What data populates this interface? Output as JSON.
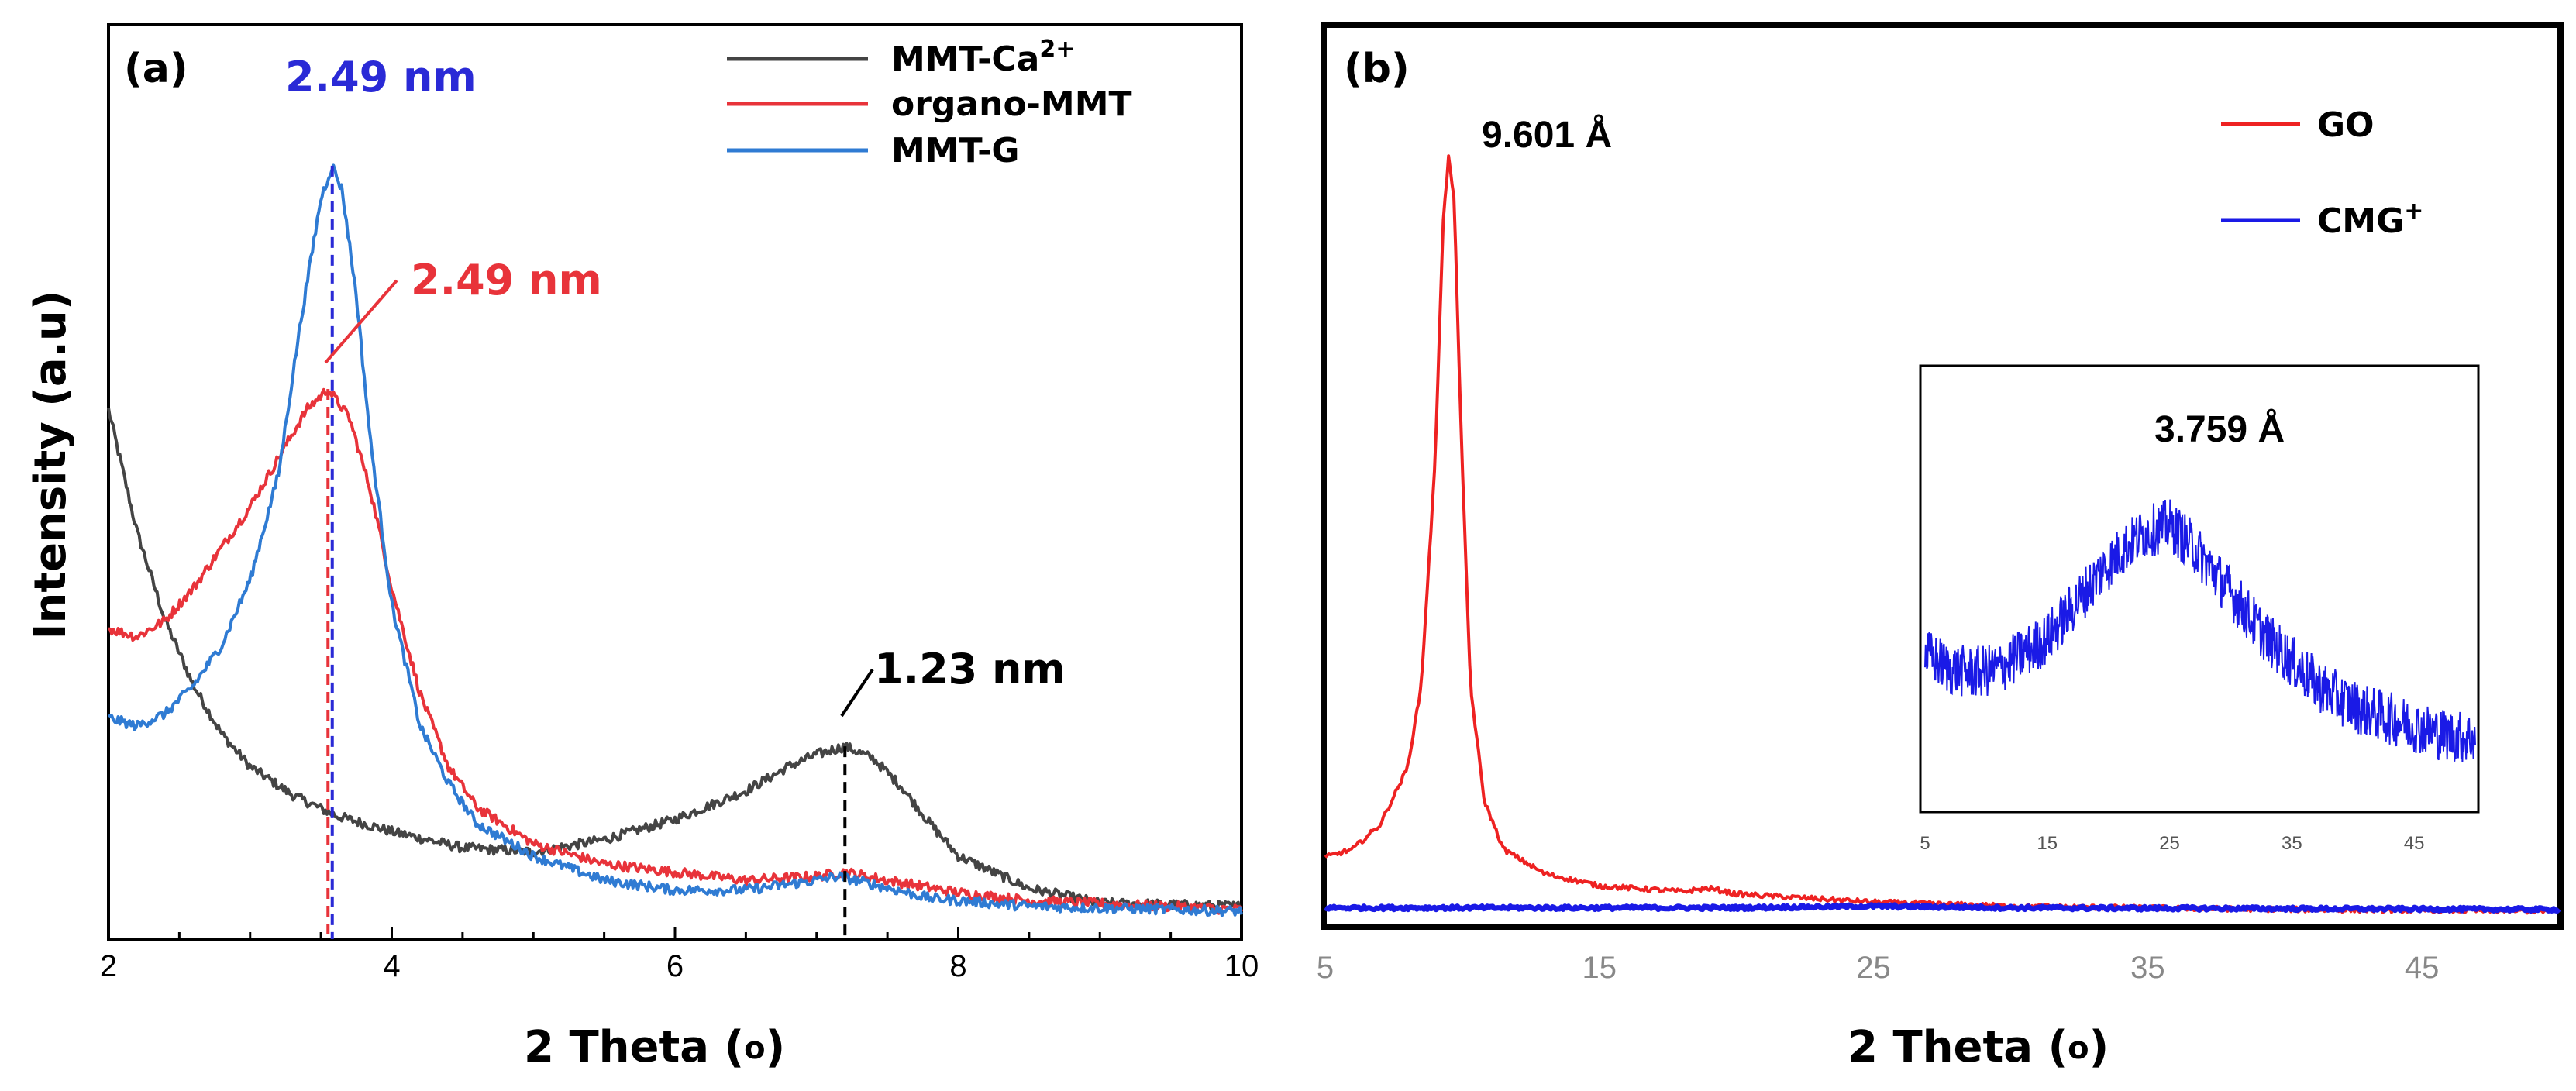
{
  "chart_data": [
    {
      "panel": "(a)",
      "type": "line",
      "xlabel": "2 Theta (o)",
      "ylabel": "Intensity (a.u)",
      "xlim": [
        2,
        10
      ],
      "ylim": [
        0,
        1
      ],
      "xticks": [
        2,
        4,
        6,
        8,
        10
      ],
      "legend_position": "top-right",
      "series": [
        {
          "name": "MMT-Ca2+",
          "legend_main": "MMT-Ca",
          "legend_sup": "2+",
          "color": "#444444",
          "points": [
            [
              2.0,
              0.62
            ],
            [
              2.2,
              0.47
            ],
            [
              2.4,
              0.36
            ],
            [
              2.6,
              0.28
            ],
            [
              2.8,
              0.22
            ],
            [
              3.0,
              0.18
            ],
            [
              3.3,
              0.145
            ],
            [
              3.6,
              0.12
            ],
            [
              4.0,
              0.1
            ],
            [
              4.5,
              0.08
            ],
            [
              5.0,
              0.075
            ],
            [
              5.5,
              0.09
            ],
            [
              6.0,
              0.115
            ],
            [
              6.5,
              0.15
            ],
            [
              6.8,
              0.18
            ],
            [
              7.0,
              0.195
            ],
            [
              7.2,
              0.205
            ],
            [
              7.4,
              0.19
            ],
            [
              7.6,
              0.155
            ],
            [
              7.8,
              0.11
            ],
            [
              8.0,
              0.07
            ],
            [
              8.5,
              0.03
            ],
            [
              9.0,
              0.012
            ],
            [
              10.0,
              0.008
            ]
          ]
        },
        {
          "name": "organo-MMT",
          "legend_main": "organo-MMT",
          "color": "#e8333a",
          "points": [
            [
              2.0,
              0.35
            ],
            [
              2.2,
              0.34
            ],
            [
              2.4,
              0.36
            ],
            [
              2.6,
              0.4
            ],
            [
              2.8,
              0.45
            ],
            [
              3.0,
              0.5
            ],
            [
              3.2,
              0.56
            ],
            [
              3.4,
              0.62
            ],
            [
              3.55,
              0.645
            ],
            [
              3.7,
              0.61
            ],
            [
              3.85,
              0.52
            ],
            [
              4.0,
              0.4
            ],
            [
              4.2,
              0.27
            ],
            [
              4.4,
              0.18
            ],
            [
              4.6,
              0.13
            ],
            [
              5.0,
              0.085
            ],
            [
              5.5,
              0.06
            ],
            [
              6.0,
              0.05
            ],
            [
              6.5,
              0.04
            ],
            [
              7.0,
              0.045
            ],
            [
              7.2,
              0.05
            ],
            [
              7.5,
              0.04
            ],
            [
              8.0,
              0.025
            ],
            [
              8.5,
              0.015
            ],
            [
              10.0,
              0.004
            ]
          ]
        },
        {
          "name": "MMT-G",
          "legend_main": "MMT-G",
          "color": "#2f7bd3",
          "points": [
            [
              2.0,
              0.24
            ],
            [
              2.2,
              0.23
            ],
            [
              2.4,
              0.245
            ],
            [
              2.6,
              0.28
            ],
            [
              2.8,
              0.33
            ],
            [
              3.0,
              0.41
            ],
            [
              3.2,
              0.54
            ],
            [
              3.35,
              0.72
            ],
            [
              3.5,
              0.88
            ],
            [
              3.58,
              0.92
            ],
            [
              3.65,
              0.89
            ],
            [
              3.75,
              0.76
            ],
            [
              3.85,
              0.58
            ],
            [
              4.0,
              0.38
            ],
            [
              4.2,
              0.23
            ],
            [
              4.4,
              0.16
            ],
            [
              4.6,
              0.11
            ],
            [
              5.0,
              0.07
            ],
            [
              5.5,
              0.04
            ],
            [
              6.0,
              0.028
            ],
            [
              6.5,
              0.028
            ],
            [
              7.0,
              0.04
            ],
            [
              7.15,
              0.045
            ],
            [
              7.4,
              0.035
            ],
            [
              7.8,
              0.018
            ],
            [
              8.5,
              0.008
            ],
            [
              10.0,
              0.002
            ]
          ]
        }
      ],
      "annotations": [
        {
          "text": "2.49 nm",
          "color": "#2a2ad6"
        },
        {
          "text": "2.49 nm",
          "color": "#e8333a"
        },
        {
          "text": "1.23 nm",
          "color": "#000000"
        }
      ]
    },
    {
      "panel": "(b)",
      "type": "line",
      "xlabel": "2 Theta (o)",
      "xlim": [
        5,
        50
      ],
      "ylim": [
        0,
        1
      ],
      "xticks": [
        5,
        15,
        25,
        35,
        45
      ],
      "legend_position": "top-right",
      "series": [
        {
          "name": "GO",
          "legend_main": "GO",
          "color": "#ee2222",
          "points": [
            [
              5.0,
              0.07
            ],
            [
              6.0,
              0.08
            ],
            [
              7.0,
              0.11
            ],
            [
              8.0,
              0.18
            ],
            [
              8.5,
              0.28
            ],
            [
              9.0,
              0.55
            ],
            [
              9.3,
              0.85
            ],
            [
              9.5,
              0.93
            ],
            [
              9.7,
              0.88
            ],
            [
              10.0,
              0.55
            ],
            [
              10.3,
              0.28
            ],
            [
              10.8,
              0.14
            ],
            [
              11.5,
              0.08
            ],
            [
              13.0,
              0.05
            ],
            [
              15.0,
              0.035
            ],
            [
              18.0,
              0.028
            ],
            [
              19.0,
              0.032
            ],
            [
              20.0,
              0.025
            ],
            [
              25.0,
              0.015
            ],
            [
              30.0,
              0.01
            ],
            [
              40.0,
              0.006
            ],
            [
              50.0,
              0.004
            ]
          ]
        },
        {
          "name": "CMG+",
          "legend_main": "CMG",
          "legend_sup": "+",
          "color": "#1a1ae6",
          "points": [
            [
              5.0,
              0.008
            ],
            [
              20.0,
              0.008
            ],
            [
              25.0,
              0.01
            ],
            [
              30.0,
              0.008
            ],
            [
              50.0,
              0.006
            ]
          ]
        }
      ],
      "annotations": [
        {
          "text": "9.601 Å",
          "color": "#000000"
        }
      ],
      "inset": {
        "xlim": [
          5,
          50
        ],
        "ylim": [
          0,
          1
        ],
        "xticks": [
          5,
          15,
          25,
          35,
          45
        ],
        "annotation": "3.759 Å",
        "series_color": "#1a1ae6",
        "points": [
          [
            5,
            0.38
          ],
          [
            7,
            0.34
          ],
          [
            9,
            0.33
          ],
          [
            11,
            0.34
          ],
          [
            13,
            0.38
          ],
          [
            15,
            0.42
          ],
          [
            17,
            0.5
          ],
          [
            19,
            0.58
          ],
          [
            21,
            0.65
          ],
          [
            23,
            0.7
          ],
          [
            25,
            0.72
          ],
          [
            27,
            0.66
          ],
          [
            29,
            0.58
          ],
          [
            31,
            0.5
          ],
          [
            33,
            0.42
          ],
          [
            35,
            0.36
          ],
          [
            37,
            0.3
          ],
          [
            39,
            0.26
          ],
          [
            41,
            0.23
          ],
          [
            43,
            0.21
          ],
          [
            45,
            0.19
          ],
          [
            47,
            0.17
          ],
          [
            49,
            0.16
          ]
        ]
      }
    }
  ]
}
